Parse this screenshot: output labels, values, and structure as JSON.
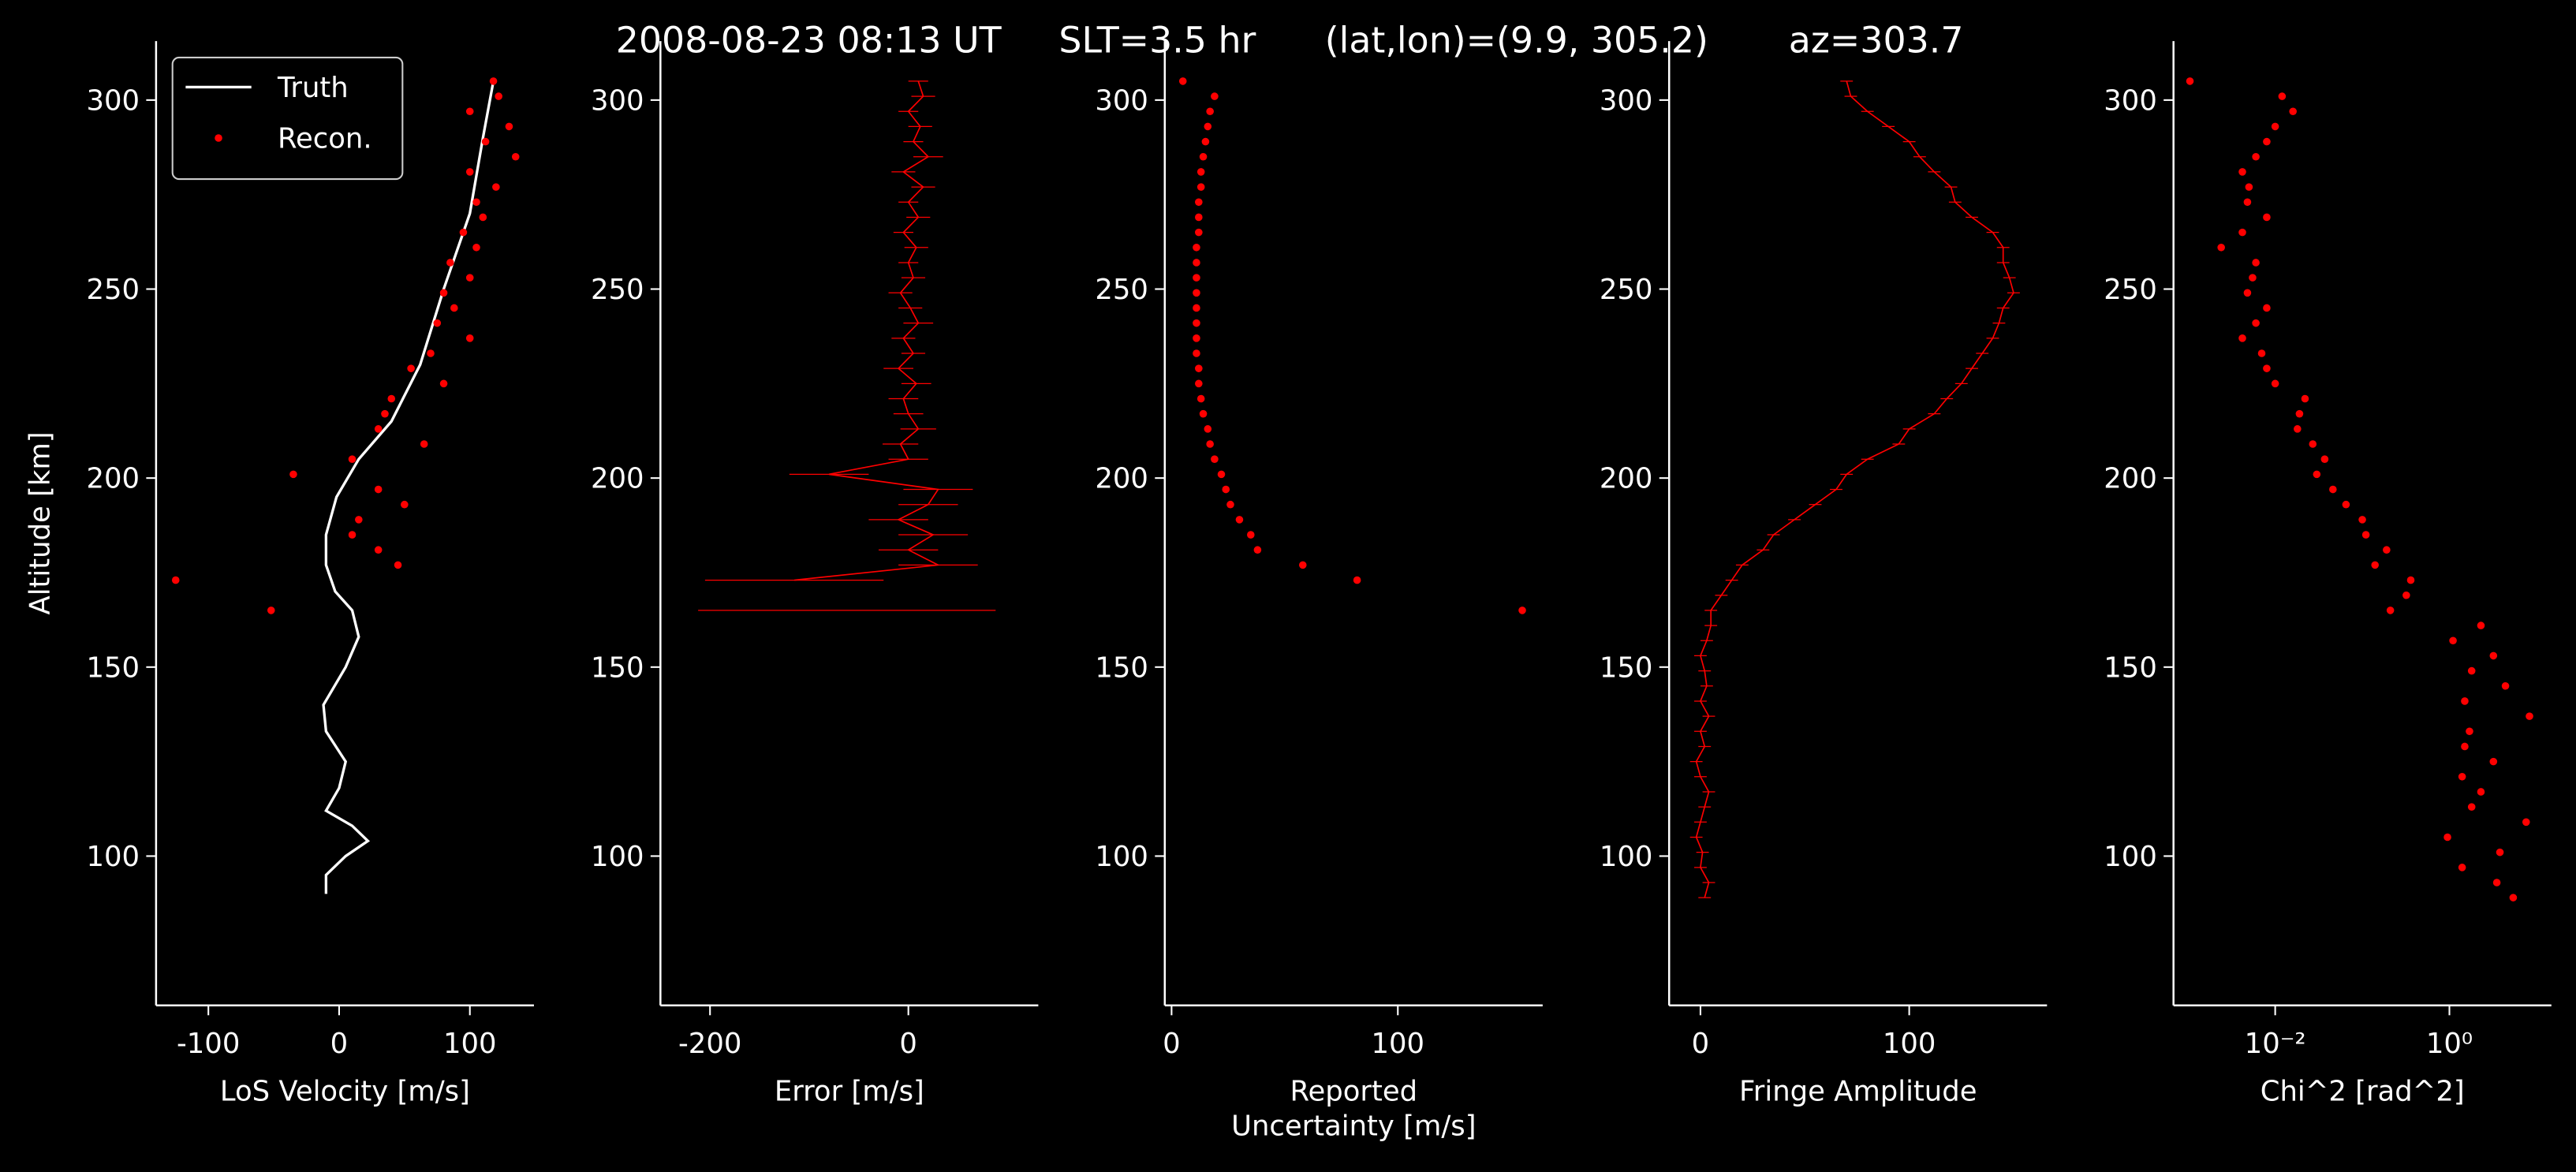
{
  "title": "2008-08-23 08:13 UT     SLT=3.5 hr      (lat,lon)=(9.9, 305.2)       az=303.7",
  "chart_data": [
    {
      "type": "line",
      "xlabel": "LoS Velocity [m/s]",
      "ylabel": "Altitude [km]",
      "legend": "upper left",
      "xlim": [
        -140,
        149
      ],
      "xticks": [
        -100,
        0,
        100
      ],
      "ylim": [
        60.5,
        315.6
      ],
      "yticks": [
        100,
        150,
        200,
        250,
        300
      ],
      "series": [
        {
          "name": "Truth",
          "color": "#ffffff",
          "mode": "line",
          "y": [
            305,
            290,
            270,
            250,
            230,
            215,
            205,
            195,
            185,
            177,
            170,
            165,
            158,
            150,
            140,
            133,
            125,
            118,
            112,
            108,
            104,
            100,
            95,
            90
          ],
          "x": [
            118,
            110,
            100,
            80,
            62,
            40,
            15,
            -2,
            -10,
            -10,
            -3,
            10,
            15,
            5,
            -12,
            -10,
            5,
            0,
            -10,
            10,
            22,
            5,
            -10,
            -10
          ]
        },
        {
          "name": "Recon.",
          "color": "#ff0000",
          "mode": "markers",
          "y": [
            305,
            301,
            297,
            293,
            289,
            285,
            281,
            277,
            273,
            269,
            265,
            261,
            257,
            253,
            249,
            245,
            241,
            237,
            233,
            229,
            225,
            221,
            217,
            213,
            209,
            205,
            201,
            197,
            193,
            189,
            185,
            181,
            177,
            173,
            169,
            165
          ],
          "x": [
            118,
            122,
            100,
            130,
            112,
            135,
            100,
            120,
            105,
            110,
            95,
            105,
            85,
            100,
            80,
            88,
            75,
            100,
            70,
            55,
            80,
            40,
            35,
            30,
            65,
            10,
            -35,
            30,
            50,
            15,
            10,
            30,
            45,
            -125,
            null,
            -52
          ]
        }
      ]
    },
    {
      "type": "line",
      "xlabel": "Error [m/s]",
      "xlim": [
        -250,
        131
      ],
      "xticks": [
        -200,
        0
      ],
      "ylim": [
        60.5,
        315.6
      ],
      "yticks": [
        100,
        150,
        200,
        250,
        300
      ],
      "series": [
        {
          "color": "#ff0000",
          "mode": "line",
          "y": [
            305,
            301,
            297,
            293,
            289,
            285,
            281,
            277,
            273,
            269,
            265,
            261,
            257,
            253,
            249,
            245,
            241,
            237,
            233,
            229,
            225,
            221,
            217,
            213,
            209,
            205,
            201,
            197,
            193,
            189,
            185,
            181,
            177,
            173,
            169,
            165
          ],
          "x": [
            10,
            15,
            0,
            12,
            5,
            20,
            -5,
            15,
            0,
            10,
            -5,
            8,
            0,
            5,
            -8,
            2,
            10,
            -5,
            5,
            -10,
            8,
            -5,
            0,
            10,
            -8,
            0,
            -80,
            30,
            20,
            -10,
            25,
            0,
            30,
            -115,
            null,
            -62
          ],
          "xerr": [
            10,
            12,
            10,
            12,
            10,
            15,
            12,
            12,
            10,
            12,
            10,
            12,
            10,
            12,
            12,
            12,
            15,
            12,
            12,
            15,
            15,
            15,
            15,
            18,
            18,
            20,
            40,
            35,
            30,
            30,
            35,
            30,
            40,
            90,
            null,
            150
          ]
        }
      ]
    },
    {
      "type": "scatter",
      "xlabel": [
        "Reported",
        "Uncertainty [m/s]"
      ],
      "xlim": [
        -3,
        164
      ],
      "xticks": [
        0,
        100
      ],
      "ylim": [
        60.5,
        315.6
      ],
      "yticks": [
        100,
        150,
        200,
        250,
        300
      ],
      "series": [
        {
          "color": "#ff0000",
          "mode": "markers",
          "y": [
            305,
            301,
            297,
            293,
            289,
            285,
            281,
            277,
            273,
            269,
            265,
            261,
            257,
            253,
            249,
            245,
            241,
            237,
            233,
            229,
            225,
            221,
            217,
            213,
            209,
            205,
            201,
            197,
            193,
            189,
            185,
            181,
            177,
            173,
            169,
            165
          ],
          "x": [
            5,
            19,
            17,
            16,
            15,
            14,
            13,
            13,
            12,
            12,
            12,
            11,
            11,
            11,
            11,
            11,
            11,
            11,
            11,
            12,
            12,
            13,
            14,
            16,
            17,
            19,
            22,
            24,
            26,
            30,
            35,
            38,
            58,
            82,
            null,
            155
          ]
        }
      ]
    },
    {
      "type": "line",
      "xlabel": "Fringe Amplitude",
      "xlim": [
        -15,
        166
      ],
      "xticks": [
        0,
        100
      ],
      "ylim": [
        60.5,
        315.6
      ],
      "yticks": [
        100,
        150,
        200,
        250,
        300
      ],
      "series": [
        {
          "color": "#ff0000",
          "mode": "line",
          "y": [
            305,
            301,
            297,
            293,
            289,
            285,
            281,
            277,
            273,
            269,
            265,
            261,
            257,
            253,
            249,
            245,
            241,
            237,
            233,
            229,
            225,
            221,
            217,
            213,
            209,
            205,
            201,
            197,
            193,
            189,
            185,
            181,
            177,
            173,
            169,
            165,
            161,
            157,
            153,
            149,
            145,
            141,
            137,
            133,
            129,
            125,
            121,
            117,
            113,
            109,
            105,
            101,
            97,
            93,
            89
          ],
          "x": [
            70,
            72,
            80,
            90,
            100,
            105,
            112,
            120,
            122,
            130,
            140,
            145,
            145,
            148,
            150,
            145,
            143,
            140,
            135,
            130,
            125,
            118,
            112,
            100,
            95,
            80,
            70,
            65,
            55,
            45,
            35,
            30,
            20,
            15,
            10,
            5,
            5,
            3,
            0,
            2,
            3,
            0,
            4,
            0,
            2,
            -2,
            0,
            4,
            2,
            0,
            -2,
            1,
            0,
            4,
            2
          ],
          "xerr": [
            3,
            3,
            3,
            3,
            3,
            3,
            3,
            3,
            3,
            3,
            3,
            3,
            3,
            3,
            3,
            3,
            3,
            3,
            3,
            3,
            3,
            3,
            3,
            3,
            3,
            3,
            3,
            3,
            3,
            3,
            3,
            3,
            3,
            3,
            3,
            3,
            3,
            3,
            3,
            3,
            3,
            3,
            3,
            3,
            3,
            3,
            3,
            3,
            3,
            3,
            3,
            3,
            3,
            3,
            3
          ]
        }
      ]
    },
    {
      "type": "scatter",
      "xlabel": "Chi^2 [rad^2]",
      "xscale": "log",
      "xlim": [
        0.00068,
        14.8
      ],
      "xticks": [
        {
          "value": 0.01,
          "label": "10⁻²"
        },
        {
          "value": 1,
          "label": "10⁰"
        }
      ],
      "ylim": [
        60.5,
        315.6
      ],
      "yticks": [
        100,
        150,
        200,
        250,
        300
      ],
      "series": [
        {
          "color": "#ff0000",
          "mode": "markers",
          "y": [
            305,
            301,
            297,
            293,
            289,
            285,
            281,
            277,
            273,
            269,
            265,
            261,
            257,
            253,
            249,
            245,
            241,
            237,
            233,
            229,
            225,
            221,
            217,
            213,
            209,
            205,
            201,
            197,
            193,
            189,
            185,
            181,
            177,
            173,
            169,
            165,
            161,
            157,
            153,
            149,
            145,
            141,
            137,
            133,
            129,
            125,
            121,
            117,
            113,
            109,
            105,
            101,
            97,
            93,
            89
          ],
          "x": [
            0.00105,
            0.012,
            0.016,
            0.01,
            0.008,
            0.006,
            0.0042,
            0.005,
            0.0048,
            0.008,
            0.0042,
            0.0024,
            0.006,
            0.0055,
            0.0048,
            0.008,
            0.006,
            0.0042,
            0.007,
            0.008,
            0.01,
            0.022,
            0.019,
            0.018,
            0.027,
            0.037,
            0.03,
            0.046,
            0.065,
            0.1,
            0.11,
            0.19,
            0.14,
            0.36,
            0.32,
            0.21,
            2.3,
            1.1,
            3.2,
            1.8,
            4.4,
            1.5,
            8.3,
            1.7,
            1.5,
            3.2,
            1.4,
            2.3,
            1.8,
            7.6,
            0.95,
            3.8,
            1.4,
            3.5,
            5.4
          ]
        }
      ]
    }
  ]
}
